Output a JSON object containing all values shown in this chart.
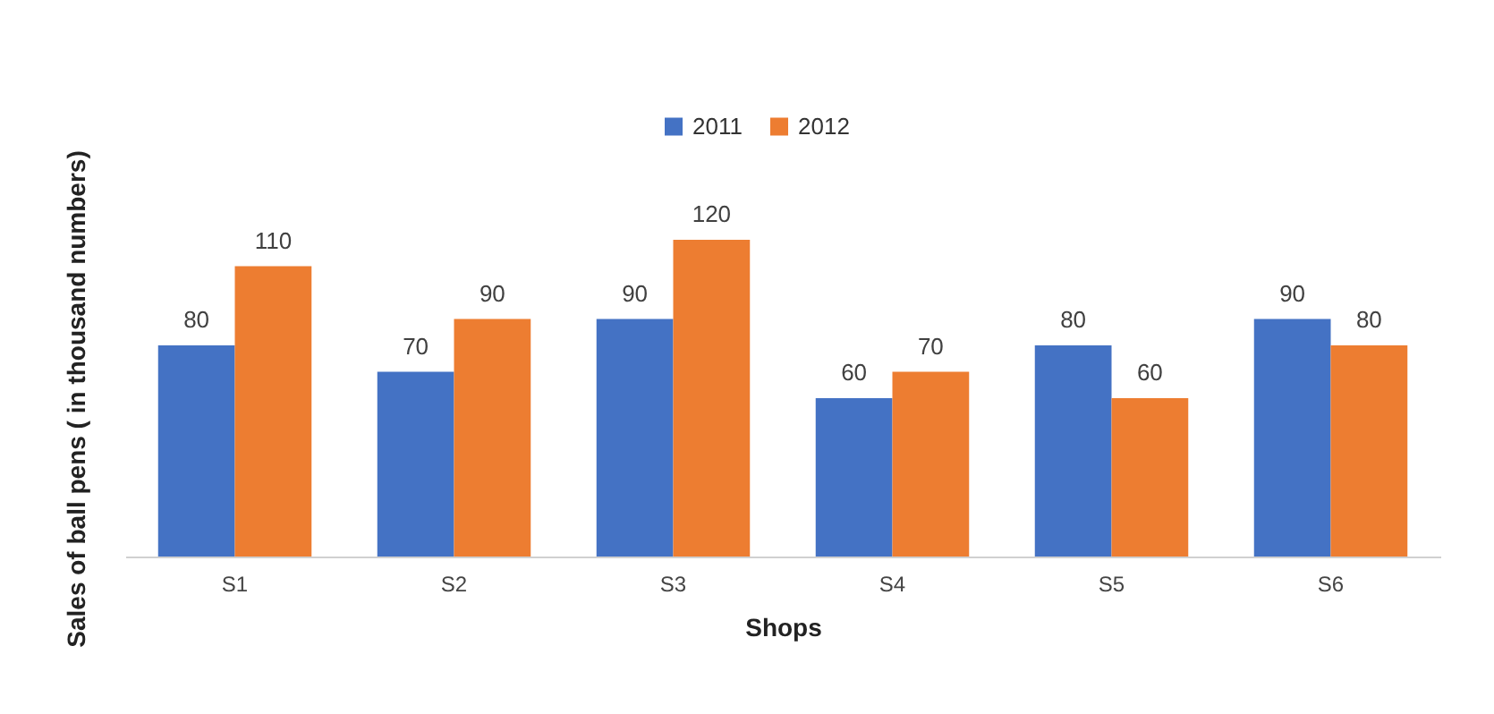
{
  "chart_data": {
    "type": "bar",
    "xlabel": "Shops",
    "ylabel": "Sales of ball pens ( in thousand numbers)",
    "categories": [
      "S1",
      "S2",
      "S3",
      "S4",
      "S5",
      "S6"
    ],
    "series": [
      {
        "name": "2011",
        "color": "#4472c4",
        "values": [
          80,
          70,
          90,
          60,
          80,
          90
        ]
      },
      {
        "name": "2012",
        "color": "#ed7d31",
        "values": [
          110,
          90,
          120,
          70,
          60,
          80
        ]
      }
    ],
    "data_labels": true,
    "legend": "top",
    "grid": false
  }
}
